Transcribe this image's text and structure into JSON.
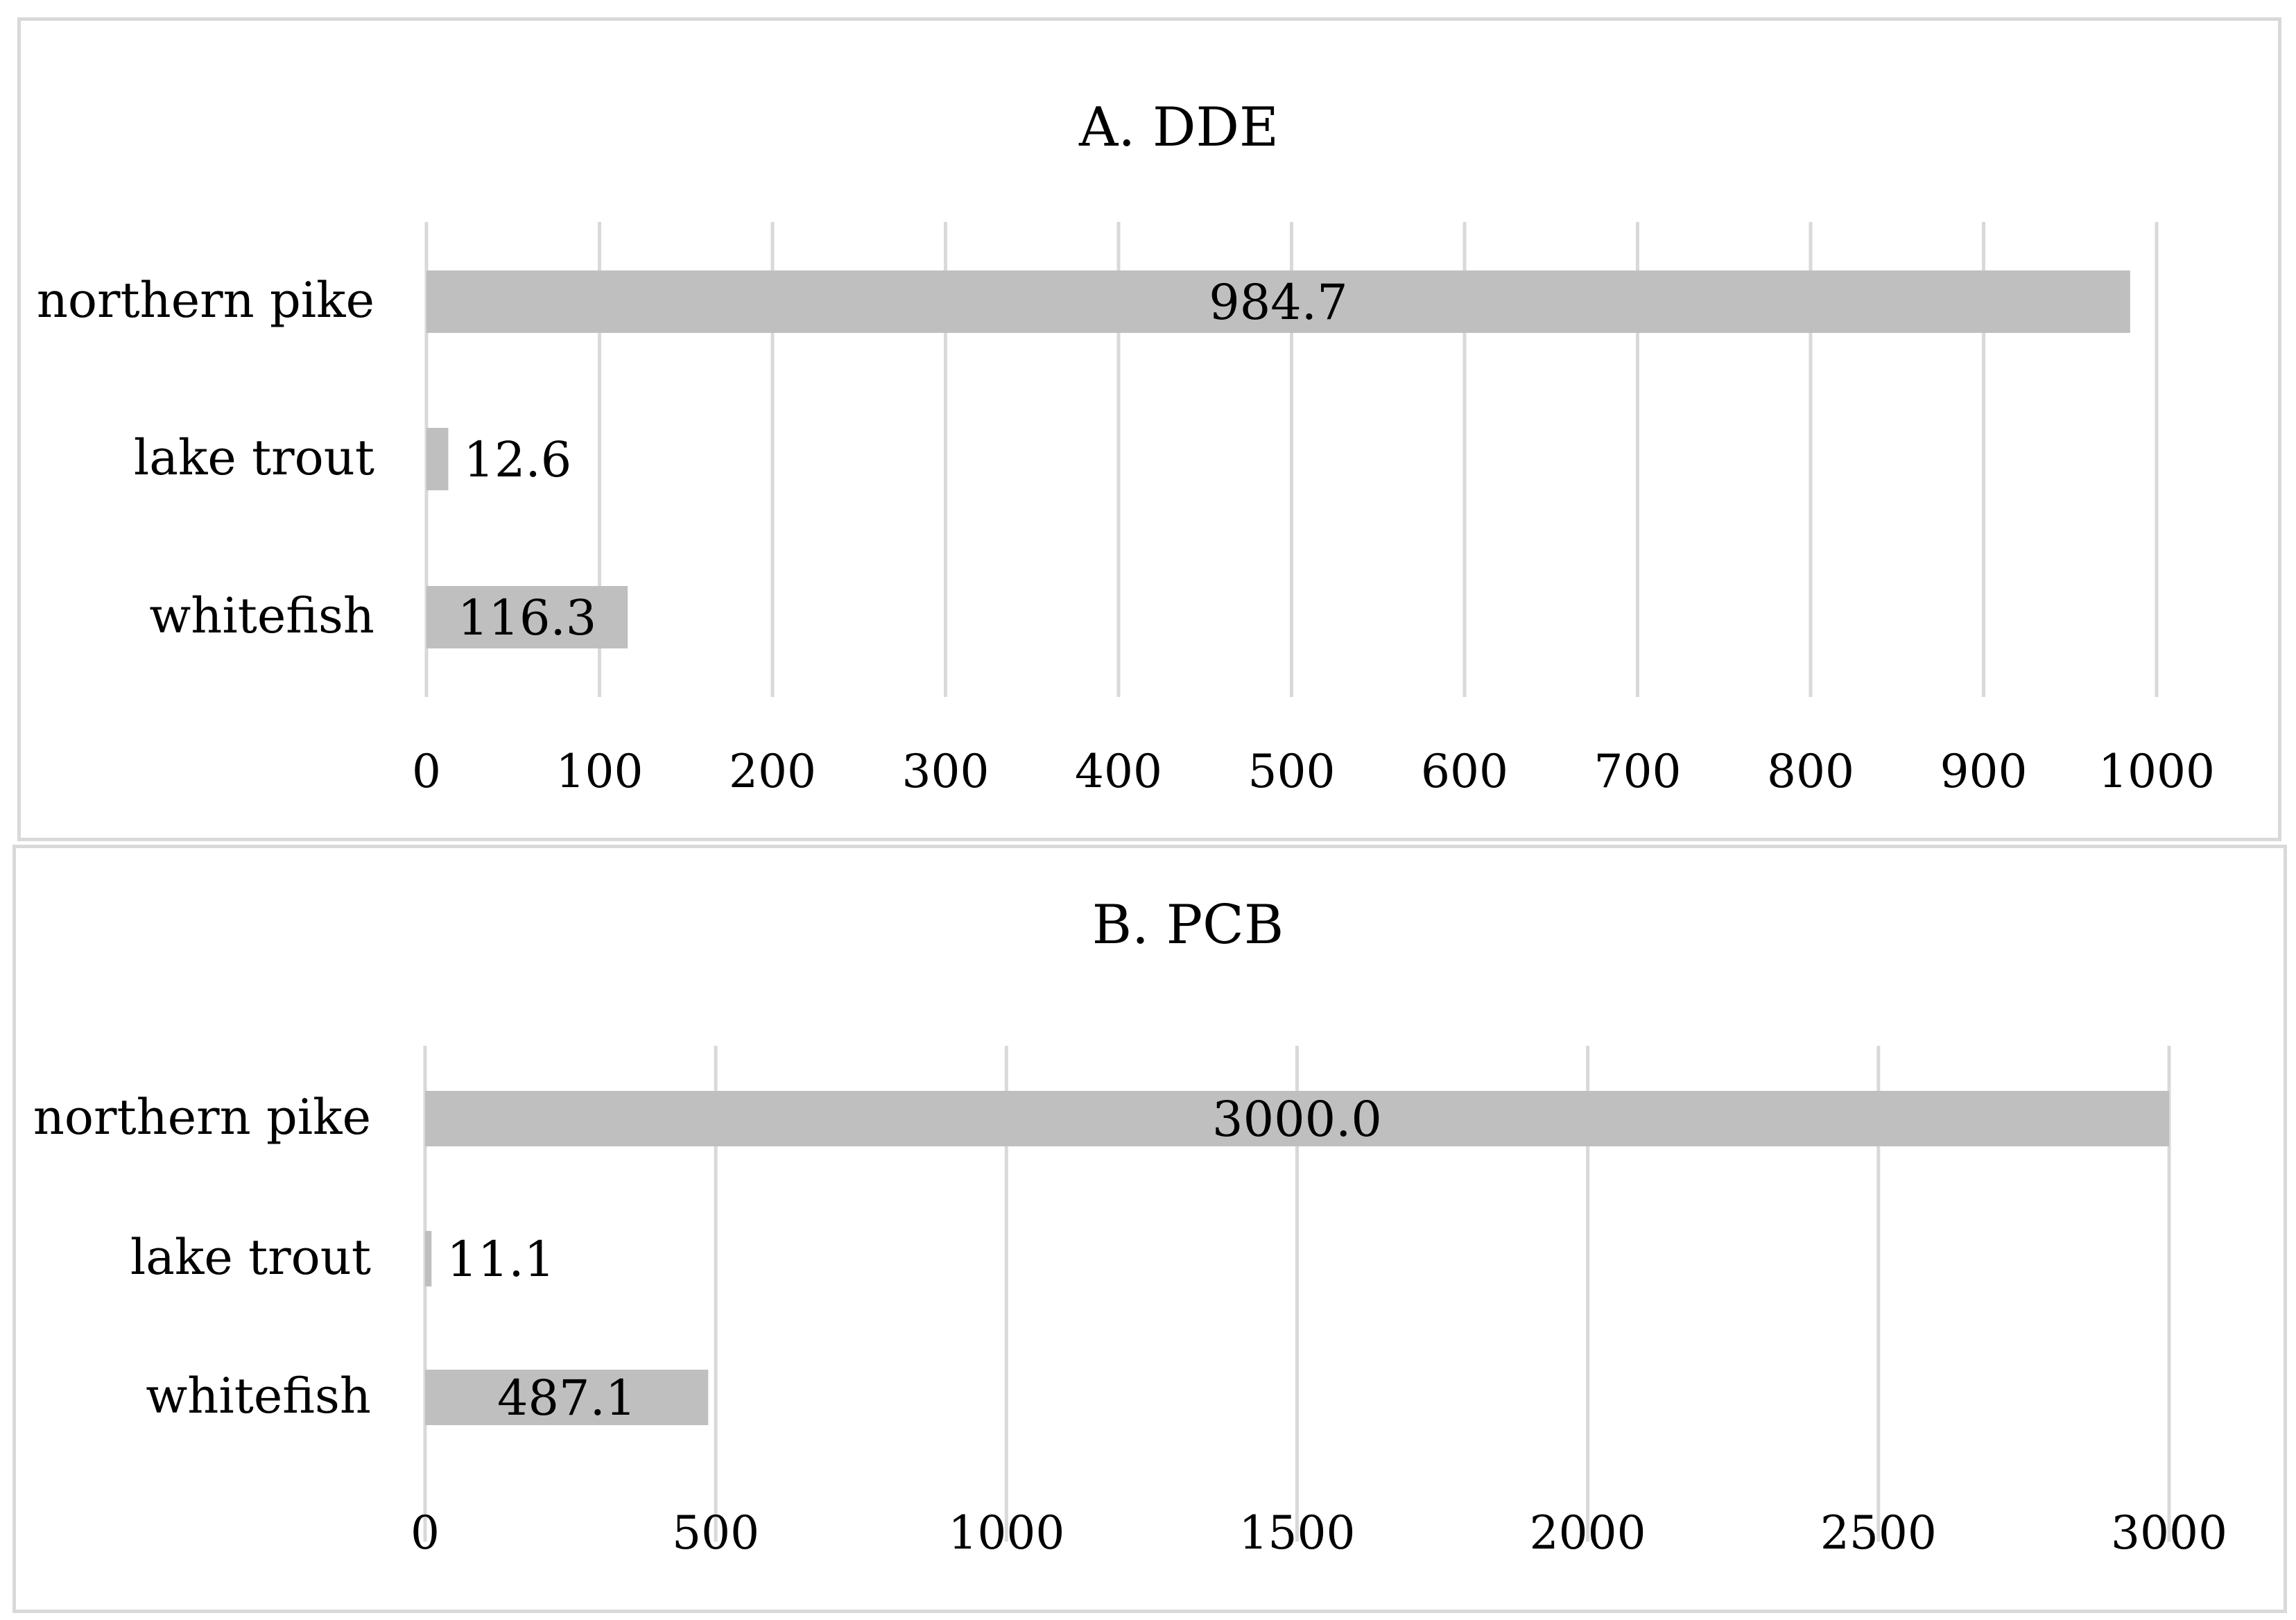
{
  "chart_data": [
    {
      "type": "bar",
      "orientation": "horizontal",
      "title": "A. DDE",
      "xlabel": "",
      "ylabel": "",
      "categories": [
        "northern pike",
        "lake trout",
        "whitefish"
      ],
      "values": [
        984.7,
        12.6,
        116.3
      ],
      "data_labels": [
        "984.7",
        "12.6",
        "116.3"
      ],
      "xlim": [
        0,
        1000
      ],
      "xticks": [
        0,
        100,
        200,
        300,
        400,
        500,
        600,
        700,
        800,
        900,
        1000
      ],
      "grid": true,
      "legend": "none",
      "bar_color": "#bfbfbf",
      "grid_color": "#d9d9d9"
    },
    {
      "type": "bar",
      "orientation": "horizontal",
      "title": "B. PCB",
      "xlabel": "",
      "ylabel": "",
      "categories": [
        "northern pike",
        "lake trout",
        "whitefish"
      ],
      "values": [
        3000.0,
        11.1,
        487.1
      ],
      "data_labels": [
        "3000.0",
        "11.1",
        "487.1"
      ],
      "xlim": [
        0,
        3000
      ],
      "xticks": [
        0,
        500,
        1000,
        1500,
        2000,
        2500,
        3000
      ],
      "grid": true,
      "legend": "none",
      "bar_color": "#bfbfbf",
      "grid_color": "#d9d9d9"
    }
  ]
}
